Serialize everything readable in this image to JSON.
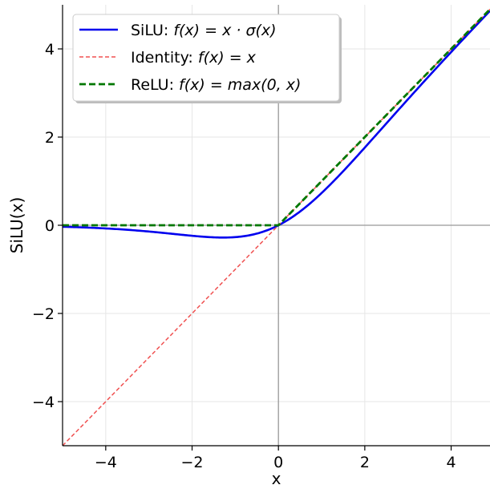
{
  "chart_data": {
    "type": "line",
    "title": "",
    "xlabel": "x",
    "ylabel": "SiLU(x)",
    "xlim": [
      -5,
      4.9
    ],
    "ylim": [
      -5,
      5
    ],
    "xticks": [
      -4,
      -2,
      0,
      2,
      4
    ],
    "yticks": [
      -4,
      -2,
      0,
      2,
      4
    ],
    "xtick_labels": [
      "−4",
      "−2",
      "0",
      "2",
      "4"
    ],
    "ytick_labels": [
      "−4",
      "−2",
      "0",
      "2",
      "4"
    ],
    "grid": true,
    "legend_position": "top-left",
    "series": [
      {
        "name": "SiLU: f(x) = x·σ(x)",
        "legend_prefix": "SiLU: ",
        "legend_formula": "f(x) = x · σ(x)",
        "color": "#0000ee",
        "style": "solid",
        "x": [
          -5,
          -4.5,
          -4,
          -3.5,
          -3,
          -2.5,
          -2,
          -1.5,
          -1.28,
          -1,
          -0.5,
          0,
          0.5,
          1,
          1.5,
          2,
          2.5,
          3,
          3.5,
          4,
          4.5,
          4.9
        ],
        "y": [
          -0.033,
          -0.05,
          -0.072,
          -0.103,
          -0.142,
          -0.189,
          -0.238,
          -0.274,
          -0.278,
          -0.269,
          -0.189,
          0,
          0.311,
          0.731,
          1.226,
          1.762,
          2.31,
          2.858,
          3.397,
          3.928,
          4.45,
          4.863
        ]
      },
      {
        "name": "Identity: f(x) = x",
        "legend_prefix": "Identity: ",
        "legend_formula": "f(x) = x",
        "color": "#f05050",
        "style": "dashed-thin",
        "x": [
          -5,
          4.9
        ],
        "y": [
          -5,
          4.9
        ]
      },
      {
        "name": "ReLU: f(x) = max(0, x)",
        "legend_prefix": "ReLU: ",
        "legend_formula": "f(x) = max(0, x)",
        "color": "#007700",
        "style": "dashed-thick",
        "x": [
          -5,
          0,
          4.9
        ],
        "y": [
          0,
          0,
          4.9
        ]
      }
    ]
  }
}
